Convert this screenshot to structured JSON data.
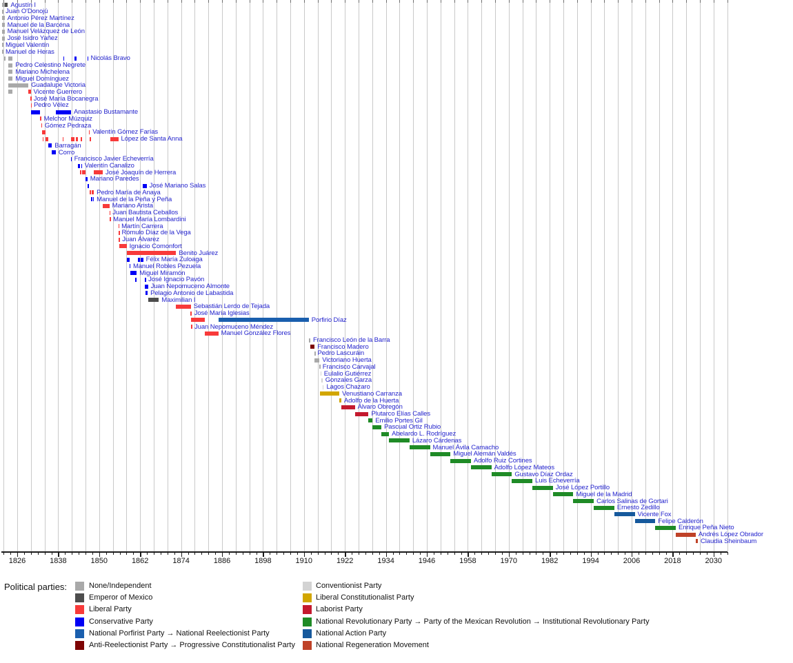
{
  "chart_data": {
    "type": "timeline",
    "description": "Timeline of presidents of Mexico with terms colored by political party",
    "label_color": "#2424cd",
    "axis": {
      "grid_start": 1822,
      "grid_end": 2034,
      "grid_step": 4,
      "minor_tick_step": 2,
      "tick_years": [
        1826,
        1838,
        1850,
        1862,
        1874,
        1886,
        1898,
        1910,
        1922,
        1934,
        1946,
        1958,
        1970,
        1982,
        1994,
        2006,
        2018,
        2030
      ]
    },
    "party_colors": {
      "none": "#a9a9a9",
      "emperor": "#4d4d4d",
      "liberal": "#f83a3a",
      "conservative": "#0000f5",
      "porfirist": "#1a5fae",
      "antireelectionist": "#7d0404",
      "conventionist": "#d3d3d3",
      "liberal_constitutionalist": "#d2a600",
      "laborist": "#c41a2e",
      "pri": "#1f8b26",
      "pan": "#16599c",
      "morena": "#bf4228"
    },
    "legend": {
      "heading": "Political parties:",
      "columns": [
        [
          {
            "party": "none",
            "label": "None/Independent"
          },
          {
            "party": "emperor",
            "label": "Emperor of Mexico"
          },
          {
            "party": "liberal",
            "label": "Liberal Party"
          },
          {
            "party": "conservative",
            "label": "Conservative Party"
          },
          {
            "party": "porfirist",
            "label": "National Porfirist Party → National Reelectionist Party"
          },
          {
            "party": "antireelectionist",
            "label": "Anti-Reelectionist Party → Progressive Constitutionalist Party"
          }
        ],
        [
          {
            "party": "conventionist",
            "label": "Conventionist Party"
          },
          {
            "party": "liberal_constitutionalist",
            "label": "Liberal Constitutionalist Party"
          },
          {
            "party": "laborist",
            "label": "Laborist Party"
          },
          {
            "party": "pri",
            "label": "National Revolutionary Party → Party of the Mexican Revolution → Institutional Revolutionary Party"
          },
          {
            "party": "pan",
            "label": "National Action Party"
          },
          {
            "party": "morena",
            "label": "National Regeneration Movement"
          }
        ]
      ]
    },
    "presidents": [
      {
        "name": "Agustín I",
        "party": "emperor",
        "terms": [
          [
            1821.65,
            1822.3,
            "none"
          ],
          [
            1822.3,
            1823.25
          ]
        ]
      },
      {
        "name": "Juan O'Donojú",
        "party": "none",
        "terms": [
          [
            1821.6,
            1821.78
          ]
        ]
      },
      {
        "name": "Antonio Pérez Martínez",
        "party": "none",
        "terms": [
          [
            1821.6,
            1822.3
          ]
        ]
      },
      {
        "name": "Manuel de la Barcéna",
        "party": "none",
        "terms": [
          [
            1821.6,
            1822.3
          ]
        ]
      },
      {
        "name": "Manuel Velázquez de León",
        "party": "none",
        "terms": [
          [
            1821.6,
            1822.3
          ]
        ]
      },
      {
        "name": "José Isidro Yañez",
        "party": "none",
        "terms": [
          [
            1821.6,
            1822.3
          ]
        ]
      },
      {
        "name": "Miguel Valentín",
        "party": "none",
        "terms": [
          [
            1821.6,
            1821.75
          ]
        ]
      },
      {
        "name": "Manuel de Heras",
        "party": "none",
        "terms": [
          [
            1821.6,
            1821.75
          ]
        ]
      },
      {
        "name": "Nicolás Bravo",
        "party": "conservative",
        "terms": [
          [
            1822.2,
            1822.4,
            "none"
          ],
          [
            1823.3,
            1824.65,
            "none"
          ],
          [
            1839.5,
            1839.65
          ],
          [
            1842.8,
            1843.45
          ],
          [
            1846.55,
            1846.7
          ]
        ]
      },
      {
        "name": "Pedro Celestino Negrete",
        "party": "none",
        "terms": [
          [
            1823.3,
            1824.65
          ]
        ]
      },
      {
        "name": "Mariano Michelena",
        "party": "none",
        "terms": [
          [
            1823.3,
            1824.65
          ]
        ]
      },
      {
        "name": "Miguel Domínguez",
        "party": "none",
        "terms": [
          [
            1823.3,
            1824.65
          ]
        ]
      },
      {
        "name": "Guadalupe Victoria",
        "party": "none",
        "terms": [
          [
            1823.3,
            1829.25
          ]
        ]
      },
      {
        "name": "Vicente Guerrero",
        "party": "liberal",
        "terms": [
          [
            1823.3,
            1824.6,
            "none"
          ],
          [
            1829.28,
            1829.95
          ]
        ]
      },
      {
        "name": "José María Bocanegra",
        "party": "liberal",
        "terms": [
          [
            1829.93,
            1830.0
          ]
        ]
      },
      {
        "name": "Pedro Vélez",
        "party": "liberal",
        "terms": [
          [
            1829.97,
            1830.03
          ]
        ]
      },
      {
        "name": "Anastasio Bustamante",
        "party": "conservative",
        "terms": [
          [
            1830.0,
            1832.6
          ],
          [
            1837.3,
            1839.45
          ],
          [
            1839.6,
            1841.75
          ]
        ]
      },
      {
        "name": "Melchor Múzquiz",
        "party": "liberal",
        "terms": [
          [
            1832.6,
            1833.0
          ]
        ]
      },
      {
        "name": "Gómez Pedraza",
        "party": "liberal",
        "terms": [
          [
            1832.97,
            1833.25
          ]
        ]
      },
      {
        "name": "Valentín Gómez Farías",
        "party": "liberal",
        "terms": [
          [
            1833.27,
            1833.42
          ],
          [
            1833.55,
            1834.35
          ],
          [
            1846.95,
            1847.25
          ]
        ]
      },
      {
        "name": "López de Santa Anna",
        "party": "liberal",
        "terms": [
          [
            1833.42,
            1833.55
          ],
          [
            1834.35,
            1835.05
          ],
          [
            1839.25,
            1839.55
          ],
          [
            1841.75,
            1842.8
          ],
          [
            1843.2,
            1843.75
          ],
          [
            1844.5,
            1844.95
          ],
          [
            1847.25,
            1847.7
          ],
          [
            1853.3,
            1855.6
          ]
        ]
      },
      {
        "name": "Barragán",
        "party": "conservative",
        "terms": [
          [
            1835.05,
            1836.15
          ]
        ]
      },
      {
        "name": "Corro",
        "party": "conservative",
        "terms": [
          [
            1836.15,
            1837.3
          ]
        ]
      },
      {
        "name": "Francisco Javier Echeverría",
        "party": "conservative",
        "terms": [
          [
            1841.72,
            1841.88
          ]
        ]
      },
      {
        "name": "Valentín Canalizo",
        "party": "conservative",
        "terms": [
          [
            1843.75,
            1844.45
          ],
          [
            1844.7,
            1844.95
          ]
        ]
      },
      {
        "name": "José Joaquín de Herrera",
        "party": "liberal",
        "terms": [
          [
            1844.45,
            1844.7
          ],
          [
            1844.95,
            1845.95
          ],
          [
            1848.45,
            1851.05
          ]
        ]
      },
      {
        "name": "Mariano Paredes",
        "party": "conservative",
        "terms": [
          [
            1846.0,
            1846.55
          ]
        ]
      },
      {
        "name": "José Mariano Salas",
        "party": "conservative",
        "terms": [
          [
            1846.6,
            1846.95
          ],
          [
            1862.8,
            1863.9
          ]
        ]
      },
      {
        "name": "Pedro María de Anaya",
        "party": "liberal",
        "terms": [
          [
            1847.25,
            1847.45
          ],
          [
            1847.85,
            1848.45
          ]
        ]
      },
      {
        "name": "Manuel de la Peña y Peña",
        "party": "conservative",
        "terms": [
          [
            1847.7,
            1847.85
          ],
          [
            1848.2,
            1848.45
          ]
        ]
      },
      {
        "name": "Mariano Arista",
        "party": "liberal",
        "terms": [
          [
            1851.05,
            1853.0
          ]
        ]
      },
      {
        "name": "Juan Bautista Ceballos",
        "party": "liberal",
        "terms": [
          [
            1853.0,
            1853.12
          ]
        ]
      },
      {
        "name": "Manuel María Lombardini",
        "party": "liberal",
        "terms": [
          [
            1853.12,
            1853.3
          ]
        ]
      },
      {
        "name": "Martín Carrera",
        "party": "liberal",
        "terms": [
          [
            1855.6,
            1855.72
          ]
        ]
      },
      {
        "name": "Rómulo Díaz de la Vega",
        "party": "liberal",
        "terms": [
          [
            1855.72,
            1855.79
          ]
        ]
      },
      {
        "name": "Juan Álvarez",
        "party": "liberal",
        "terms": [
          [
            1855.79,
            1855.95
          ]
        ]
      },
      {
        "name": "Ignacio Comonfort",
        "party": "liberal",
        "terms": [
          [
            1855.95,
            1858.05
          ]
        ]
      },
      {
        "name": "Benito Juárez",
        "party": "liberal",
        "terms": [
          [
            1858.05,
            1872.55
          ]
        ]
      },
      {
        "name": "Félix María Zuloaga",
        "party": "conservative",
        "terms": [
          [
            1858.05,
            1859.0
          ],
          [
            1861.3,
            1862.05
          ],
          [
            1862.2,
            1862.9
          ]
        ]
      },
      {
        "name": "Manuel Robles Pezuela",
        "party": "conservative",
        "terms": [
          [
            1858.95,
            1859.12
          ]
        ]
      },
      {
        "name": "Miguel Miramón",
        "party": "conservative",
        "terms": [
          [
            1859.12,
            1861.0
          ]
        ]
      },
      {
        "name": "José Ignacio Pavón",
        "party": "conservative",
        "terms": [
          [
            1860.6,
            1860.7
          ],
          [
            1863.4,
            1863.6
          ]
        ]
      },
      {
        "name": "Juan Nepomuceno Almonte",
        "party": "conservative",
        "terms": [
          [
            1863.4,
            1864.3
          ]
        ]
      },
      {
        "name": "Pelagio Antonio de Labastida",
        "party": "conservative",
        "terms": [
          [
            1863.6,
            1864.2
          ]
        ]
      },
      {
        "name": "Maximilian I",
        "party": "emperor",
        "terms": [
          [
            1864.3,
            1867.5
          ]
        ]
      },
      {
        "name": "Sebastián Lerdo de Tejada",
        "party": "liberal",
        "terms": [
          [
            1872.55,
            1876.85
          ]
        ]
      },
      {
        "name": "José María Iglesias",
        "party": "liberal",
        "terms": [
          [
            1876.8,
            1877.05
          ]
        ]
      },
      {
        "name": "Porfirio Díaz",
        "party": "porfirist",
        "terms": [
          [
            1876.9,
            1880.92,
            "liberal"
          ],
          [
            1884.92,
            1911.4
          ]
        ]
      },
      {
        "name": "Juan Nepomuceno Méndez",
        "party": "liberal",
        "terms": [
          [
            1876.95,
            1877.12
          ]
        ]
      },
      {
        "name": "Manuel González Flores",
        "party": "liberal",
        "terms": [
          [
            1880.92,
            1884.92
          ]
        ]
      },
      {
        "name": "Francisco León de la Barra",
        "party": "none",
        "terms": [
          [
            1911.4,
            1911.85
          ]
        ]
      },
      {
        "name": "Francisco Madero",
        "party": "antireelectionist",
        "terms": [
          [
            1911.85,
            1913.12
          ]
        ]
      },
      {
        "name": "Pedro Lascuráin",
        "party": "none",
        "terms": [
          [
            1913.1,
            1913.16
          ]
        ]
      },
      {
        "name": "Victoriano Huerta",
        "party": "none",
        "terms": [
          [
            1913.16,
            1914.53
          ]
        ]
      },
      {
        "name": "Francisco Carvajal",
        "party": "none",
        "terms": [
          [
            1914.53,
            1914.63
          ]
        ]
      },
      {
        "name": "Eulalio Gutiérrez",
        "party": "conventionist",
        "terms": [
          [
            1914.85,
            1915.05
          ]
        ]
      },
      {
        "name": "Gonzales Garza",
        "party": "conventionist",
        "terms": [
          [
            1915.05,
            1915.45
          ]
        ]
      },
      {
        "name": "Lagos Chazaro",
        "party": "conventionist",
        "terms": [
          [
            1915.45,
            1915.8
          ]
        ]
      },
      {
        "name": "Venustiano Carranza",
        "party": "liberal_constitutionalist",
        "terms": [
          [
            1914.63,
            1920.37
          ]
        ]
      },
      {
        "name": "Adolfo de la Huerta",
        "party": "liberal_constitutionalist",
        "terms": [
          [
            1920.42,
            1920.92
          ]
        ]
      },
      {
        "name": "Álvaro Obregón",
        "party": "laborist",
        "terms": [
          [
            1920.92,
            1924.92
          ]
        ]
      },
      {
        "name": "Plutarco Elías Calles",
        "party": "laborist",
        "terms": [
          [
            1924.92,
            1928.92
          ]
        ]
      },
      {
        "name": "Emilio Portes Gil",
        "party": "pri",
        "terms": [
          [
            1928.92,
            1930.1
          ]
        ]
      },
      {
        "name": "Pascual Ortiz Rubio",
        "party": "pri",
        "terms": [
          [
            1930.1,
            1932.68
          ]
        ]
      },
      {
        "name": "Abelardo L. Rodríguez",
        "party": "pri",
        "terms": [
          [
            1932.68,
            1934.92
          ]
        ]
      },
      {
        "name": "Lázaro Cárdenas",
        "party": "pri",
        "terms": [
          [
            1934.92,
            1940.92
          ]
        ]
      },
      {
        "name": "Manuel Ávila Camacho",
        "party": "pri",
        "terms": [
          [
            1940.92,
            1946.92
          ]
        ]
      },
      {
        "name": "Miguel Alemán Valdés",
        "party": "pri",
        "terms": [
          [
            1946.92,
            1952.92
          ]
        ]
      },
      {
        "name": "Adolfo Ruiz Cortines",
        "party": "pri",
        "terms": [
          [
            1952.92,
            1958.92
          ]
        ]
      },
      {
        "name": "Adolfo López Mateos",
        "party": "pri",
        "terms": [
          [
            1958.92,
            1964.92
          ]
        ]
      },
      {
        "name": "Gustavo Díaz Ordaz",
        "party": "pri",
        "terms": [
          [
            1964.92,
            1970.92
          ]
        ]
      },
      {
        "name": "Luis Echeverría",
        "party": "pri",
        "terms": [
          [
            1970.92,
            1976.92
          ]
        ]
      },
      {
        "name": "José López Portillo",
        "party": "pri",
        "terms": [
          [
            1976.92,
            1982.92
          ]
        ]
      },
      {
        "name": "Miguel de la Madrid",
        "party": "pri",
        "terms": [
          [
            1982.92,
            1988.92
          ]
        ]
      },
      {
        "name": "Carlos Salinas de Gortari",
        "party": "pri",
        "terms": [
          [
            1988.92,
            1994.92
          ]
        ]
      },
      {
        "name": "Ernesto Zedillo",
        "party": "pri",
        "terms": [
          [
            1994.92,
            2000.92
          ]
        ]
      },
      {
        "name": "Vicente Fox",
        "party": "pan",
        "terms": [
          [
            2000.92,
            2006.92
          ]
        ]
      },
      {
        "name": "Felipe Calderón",
        "party": "pan",
        "terms": [
          [
            2006.92,
            2012.92
          ]
        ]
      },
      {
        "name": "Enrique Peña Nieto",
        "party": "pri",
        "terms": [
          [
            2012.92,
            2018.92
          ]
        ]
      },
      {
        "name": "Andrés López Obrador",
        "party": "morena",
        "terms": [
          [
            2018.92,
            2024.75
          ]
        ]
      },
      {
        "name": "Claudia Sheinbaum",
        "party": "morena",
        "terms": [
          [
            2024.75,
            2025.4
          ]
        ]
      }
    ]
  }
}
